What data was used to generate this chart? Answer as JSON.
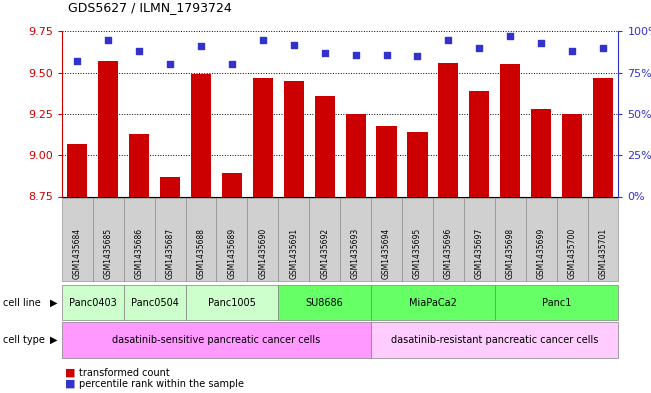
{
  "title": "GDS5627 / ILMN_1793724",
  "samples": [
    "GSM1435684",
    "GSM1435685",
    "GSM1435686",
    "GSM1435687",
    "GSM1435688",
    "GSM1435689",
    "GSM1435690",
    "GSM1435691",
    "GSM1435692",
    "GSM1435693",
    "GSM1435694",
    "GSM1435695",
    "GSM1435696",
    "GSM1435697",
    "GSM1435698",
    "GSM1435699",
    "GSM1435700",
    "GSM1435701"
  ],
  "bar_values": [
    9.07,
    9.57,
    9.13,
    8.87,
    9.49,
    8.89,
    9.47,
    9.45,
    9.36,
    9.25,
    9.18,
    9.14,
    9.56,
    9.39,
    9.55,
    9.28,
    9.25,
    9.47
  ],
  "percentile_values": [
    82,
    95,
    88,
    80,
    91,
    80,
    95,
    92,
    87,
    86,
    86,
    85,
    95,
    90,
    97,
    93,
    88,
    90
  ],
  "bar_color": "#cc0000",
  "dot_color": "#3333cc",
  "ylim_left": [
    8.75,
    9.75
  ],
  "ylim_right": [
    0,
    100
  ],
  "yticks_left": [
    8.75,
    9.0,
    9.25,
    9.5,
    9.75
  ],
  "yticks_right": [
    0,
    25,
    50,
    75,
    100
  ],
  "cell_lines": [
    {
      "label": "Panc0403",
      "start": 0,
      "end": 2
    },
    {
      "label": "Panc0504",
      "start": 2,
      "end": 4
    },
    {
      "label": "Panc1005",
      "start": 4,
      "end": 7
    },
    {
      "label": "SU8686",
      "start": 7,
      "end": 10
    },
    {
      "label": "MiaPaCa2",
      "start": 10,
      "end": 14
    },
    {
      "label": "Panc1",
      "start": 14,
      "end": 18
    }
  ],
  "cell_line_color_sensitive": "#ccffcc",
  "cell_line_color_resistant": "#66ff66",
  "cell_line_sensitive_count": 3,
  "cell_types": [
    {
      "label": "dasatinib-sensitive pancreatic cancer cells",
      "start": 0,
      "end": 10,
      "color": "#ff99ff"
    },
    {
      "label": "dasatinib-resistant pancreatic cancer cells",
      "start": 10,
      "end": 18,
      "color": "#ffccff"
    }
  ],
  "sample_box_color": "#d0d0d0",
  "ylabel_left_color": "#cc0000",
  "ylabel_right_color": "#3333cc",
  "legend_bar_color": "#cc0000",
  "legend_dot_color": "#3333cc",
  "legend_label_bar": "transformed count",
  "legend_label_dot": "percentile rank within the sample"
}
